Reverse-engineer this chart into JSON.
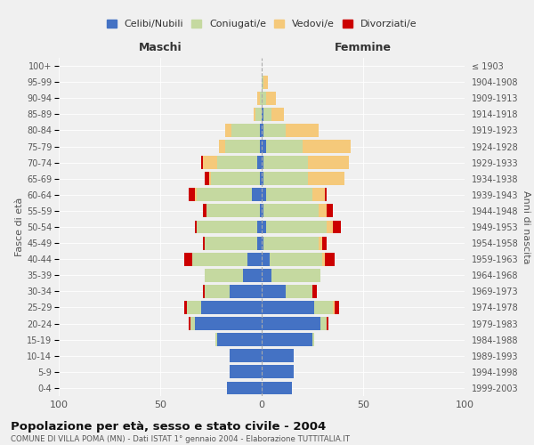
{
  "age_groups": [
    "0-4",
    "5-9",
    "10-14",
    "15-19",
    "20-24",
    "25-29",
    "30-34",
    "35-39",
    "40-44",
    "45-49",
    "50-54",
    "55-59",
    "60-64",
    "65-69",
    "70-74",
    "75-79",
    "80-84",
    "85-89",
    "90-94",
    "95-99",
    "100+"
  ],
  "birth_years": [
    "1999-2003",
    "1994-1998",
    "1989-1993",
    "1984-1988",
    "1979-1983",
    "1974-1978",
    "1969-1973",
    "1964-1968",
    "1959-1963",
    "1954-1958",
    "1949-1953",
    "1944-1948",
    "1939-1943",
    "1934-1938",
    "1929-1933",
    "1924-1928",
    "1919-1923",
    "1914-1918",
    "1909-1913",
    "1904-1908",
    "≤ 1903"
  ],
  "male": {
    "single": [
      17,
      16,
      16,
      22,
      33,
      30,
      16,
      9,
      7,
      2,
      2,
      1,
      5,
      1,
      2,
      1,
      1,
      0,
      0,
      0,
      0
    ],
    "married": [
      0,
      0,
      0,
      1,
      2,
      7,
      12,
      19,
      27,
      26,
      30,
      26,
      27,
      24,
      20,
      17,
      14,
      3,
      1,
      0,
      0
    ],
    "widowed": [
      0,
      0,
      0,
      0,
      0,
      0,
      0,
      0,
      0,
      0,
      0,
      0,
      1,
      1,
      7,
      3,
      3,
      1,
      1,
      0,
      0
    ],
    "divorced": [
      0,
      0,
      0,
      0,
      1,
      1,
      1,
      0,
      4,
      1,
      1,
      2,
      3,
      2,
      1,
      0,
      0,
      0,
      0,
      0,
      0
    ]
  },
  "female": {
    "single": [
      15,
      16,
      16,
      25,
      29,
      26,
      12,
      5,
      4,
      1,
      2,
      1,
      2,
      1,
      1,
      2,
      1,
      1,
      0,
      0,
      0
    ],
    "married": [
      0,
      0,
      0,
      1,
      3,
      9,
      13,
      24,
      26,
      27,
      30,
      27,
      23,
      22,
      22,
      18,
      11,
      4,
      2,
      1,
      0
    ],
    "widowed": [
      0,
      0,
      0,
      0,
      0,
      1,
      0,
      0,
      1,
      2,
      3,
      4,
      6,
      18,
      20,
      24,
      16,
      6,
      5,
      2,
      0
    ],
    "divorced": [
      0,
      0,
      0,
      0,
      1,
      2,
      2,
      0,
      5,
      2,
      4,
      3,
      1,
      0,
      0,
      0,
      0,
      0,
      0,
      0,
      0
    ]
  },
  "colors": {
    "single": "#4472c4",
    "married": "#c5d9a0",
    "widowed": "#f5c97a",
    "divorced": "#cc0000"
  },
  "legend_labels": [
    "Celibi/Nubili",
    "Coniugati/e",
    "Vedovi/e",
    "Divorziati/e"
  ],
  "title": "Popolazione per età, sesso e stato civile - 2004",
  "subtitle": "COMUNE DI VILLA POMA (MN) - Dati ISTAT 1° gennaio 2004 - Elaborazione TUTTITALIA.IT",
  "xlabel_left": "Maschi",
  "xlabel_right": "Femmine",
  "ylabel_left": "Fasce di età",
  "ylabel_right": "Anni di nascita",
  "xlim": 100,
  "background_color": "#f0f0f0"
}
